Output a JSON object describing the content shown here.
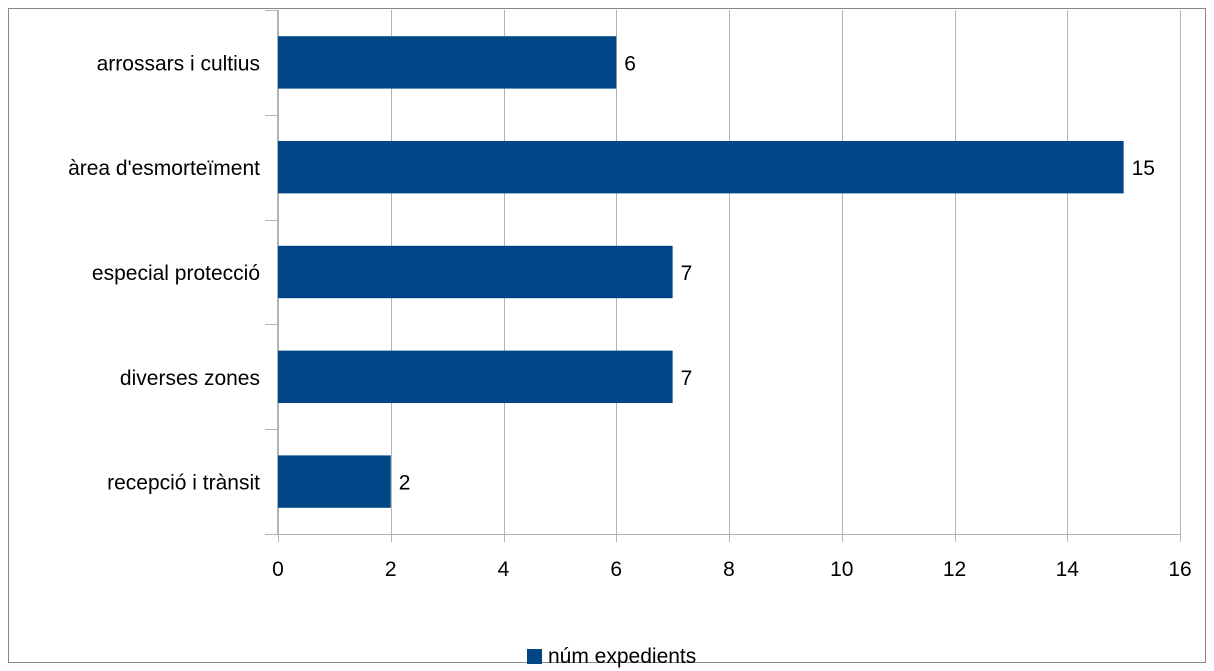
{
  "chart_data": {
    "type": "bar",
    "orientation": "horizontal",
    "categories": [
      "arrossars i cultius",
      "àrea d'esmorteïment",
      "especial protecció",
      "diverses zones",
      "recepció i trànsit"
    ],
    "series": [
      {
        "name": "núm expedients",
        "values": [
          6,
          15,
          7,
          7,
          2
        ],
        "color": "#004586"
      }
    ],
    "xlim": [
      0,
      16
    ],
    "xticks": [
      0,
      2,
      4,
      6,
      8,
      10,
      12,
      14,
      16
    ],
    "grid": "vertical",
    "data_labels": true,
    "legend_position": "bottom"
  },
  "colors": {
    "bar": "#004586",
    "grid": "#b3b3b3",
    "axis": "#b3b3b3",
    "border": "#888888"
  }
}
